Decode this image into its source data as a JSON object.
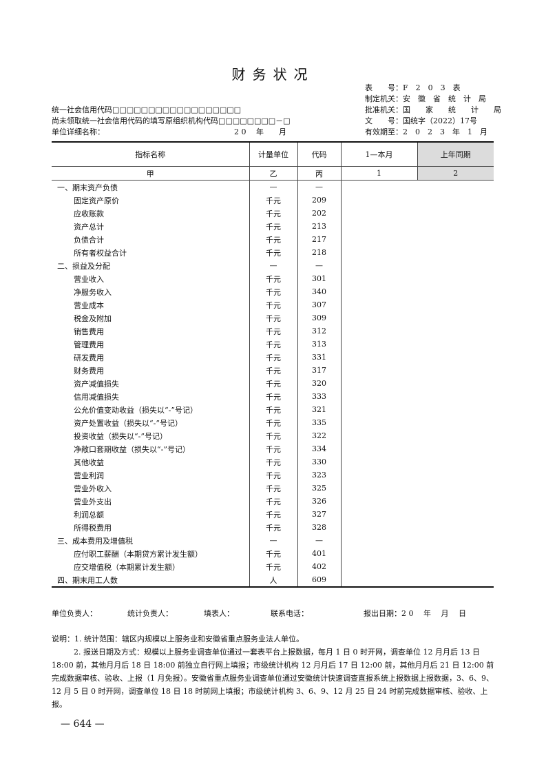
{
  "title": "财务状况",
  "meta": {
    "form_no": "表　　号：F　2　0　3　表",
    "issuer": "制定机关：安　徽　省　统　计　局",
    "approver": "批准机关：国　　家　　统　　计　　局",
    "doc_no": "文　　号：国统字（2022）17号",
    "valid": "有效期至：2　0　2　3　年　1　月"
  },
  "left_meta": {
    "credit_code": "统一社会信用代码□□□□□□□□□□□□□□□□□□",
    "org_code": "尚未领取统一社会信用代码的填写原组织机构代码□□□□□□□□－□",
    "unit_name": "单位详细名称：",
    "period": "2 0　 年　　月"
  },
  "table": {
    "headers": [
      "指标名称",
      "计量单位",
      "代码",
      "1—本月",
      "上年同期"
    ],
    "index": [
      "甲",
      "乙",
      "丙",
      "1",
      "2"
    ],
    "rows": [
      {
        "name": "一、期末资产负债",
        "unit": "—",
        "code": "—",
        "level": "s"
      },
      {
        "name": "固定资产原价",
        "unit": "千元",
        "code": "209",
        "level": "i"
      },
      {
        "name": "应收账款",
        "unit": "千元",
        "code": "202",
        "level": "i"
      },
      {
        "name": "资产总计",
        "unit": "千元",
        "code": "213",
        "level": "i"
      },
      {
        "name": "负债合计",
        "unit": "千元",
        "code": "217",
        "level": "i"
      },
      {
        "name": "所有者权益合计",
        "unit": "千元",
        "code": "218",
        "level": "i"
      },
      {
        "name": "二、损益及分配",
        "unit": "—",
        "code": "—",
        "level": "s"
      },
      {
        "name": "营业收入",
        "unit": "千元",
        "code": "301",
        "level": "i"
      },
      {
        "name": "净服务收入",
        "unit": "千元",
        "code": "340",
        "level": "i"
      },
      {
        "name": "营业成本",
        "unit": "千元",
        "code": "307",
        "level": "i"
      },
      {
        "name": "税金及附加",
        "unit": "千元",
        "code": "309",
        "level": "i"
      },
      {
        "name": "销售费用",
        "unit": "千元",
        "code": "312",
        "level": "i"
      },
      {
        "name": "管理费用",
        "unit": "千元",
        "code": "313",
        "level": "i"
      },
      {
        "name": "研发费用",
        "unit": "千元",
        "code": "331",
        "level": "i"
      },
      {
        "name": "财务费用",
        "unit": "千元",
        "code": "317",
        "level": "i"
      },
      {
        "name": "资产减值损失",
        "unit": "千元",
        "code": "320",
        "level": "i"
      },
      {
        "name": "信用减值损失",
        "unit": "千元",
        "code": "333",
        "level": "i"
      },
      {
        "name": "公允价值变动收益（损失以“-”号记）",
        "unit": "千元",
        "code": "321",
        "level": "i"
      },
      {
        "name": "资产处置收益（损失以“-”号记）",
        "unit": "千元",
        "code": "335",
        "level": "i"
      },
      {
        "name": "投资收益（损失以“-”号记）",
        "unit": "千元",
        "code": "322",
        "level": "i"
      },
      {
        "name": "净敞口套期收益（损失以“-”号记）",
        "unit": "千元",
        "code": "334",
        "level": "i"
      },
      {
        "name": "其他收益",
        "unit": "千元",
        "code": "330",
        "level": "i"
      },
      {
        "name": "营业利润",
        "unit": "千元",
        "code": "323",
        "level": "i"
      },
      {
        "name": "营业外收入",
        "unit": "千元",
        "code": "325",
        "level": "i"
      },
      {
        "name": "营业外支出",
        "unit": "千元",
        "code": "326",
        "level": "i"
      },
      {
        "name": "利润总额",
        "unit": "千元",
        "code": "327",
        "level": "i"
      },
      {
        "name": "所得税费用",
        "unit": "千元",
        "code": "328",
        "level": "i"
      },
      {
        "name": "三、成本费用及增值税",
        "unit": "—",
        "code": "—",
        "level": "s"
      },
      {
        "name": "应付职工薪酬（本期贷方累计发生额）",
        "unit": "千元",
        "code": "401",
        "level": "i"
      },
      {
        "name": "应交增值税（本期累计发生额）",
        "unit": "千元",
        "code": "402",
        "level": "i"
      },
      {
        "name": "四、期末用工人数",
        "unit": "人",
        "code": "609",
        "level": "s"
      }
    ]
  },
  "footer": {
    "unit_head": "单位负责人：",
    "stat_head": "统计负责人：",
    "filler": "填表人：",
    "phone": "联系电话：",
    "report_date": "报出日期：2 0　 年　 月　 日"
  },
  "notes": [
    "说明：1. 统计范围：辖区内规模以上服务业和安徽省重点服务业法人单位。",
    "2. 报送日期及方式：规模以上服务业调查单位通过一套表平台上报数据，每月 1 日 0 时开网，调查单位 12 月月后 13 日 18:00 前，其他月月后 18 日 18:00 前独立自行网上填报；市级统计机构 12 月月后 17 日 12:00 前，其他月月后 21 日 12:00 前完成数据审核、验收、上报（1 月免报）。安徽省重点服务业调查单位通过安徽统计快速调查直报系统上报数据上报数据，3、6、9、12 月 5 日 0 时开网，调查单位 18 日 18 时前网上填报；市级统计机构 3、6、9、12 月 25 日 24 时前完成数据审核、验收、上报。"
  ],
  "page_number": "— 644 —"
}
